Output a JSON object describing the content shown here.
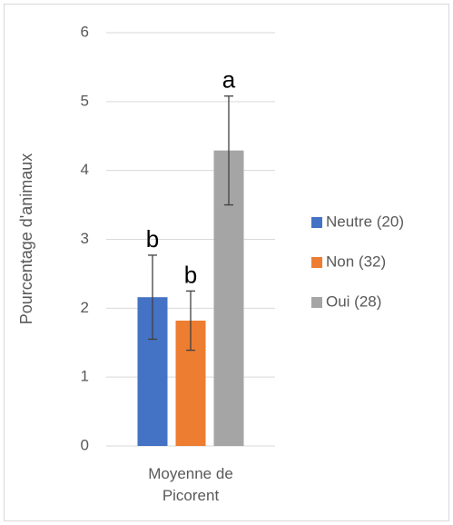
{
  "chart_data": {
    "type": "bar",
    "y_label": "Pourcentage d'animaux",
    "categories": [
      "Moyenne de Picorent"
    ],
    "series": [
      {
        "name": "Neutre (20)",
        "color": "#4472c4",
        "values": [
          2.16
        ],
        "errors": [
          0.61
        ],
        "annotations": [
          "b"
        ]
      },
      {
        "name": "Non (32)",
        "color": "#ed7d31",
        "values": [
          1.82
        ],
        "errors": [
          0.43
        ],
        "annotations": [
          "b"
        ]
      },
      {
        "name": "Oui (28)",
        "color": "#a5a5a5",
        "values": [
          4.29
        ],
        "errors": [
          0.79
        ],
        "annotations": [
          "a"
        ]
      }
    ],
    "ylim": [
      0,
      6
    ],
    "yticks": [
      0,
      1,
      2,
      3,
      4,
      5,
      6
    ],
    "grid": true,
    "legend": "right"
  }
}
